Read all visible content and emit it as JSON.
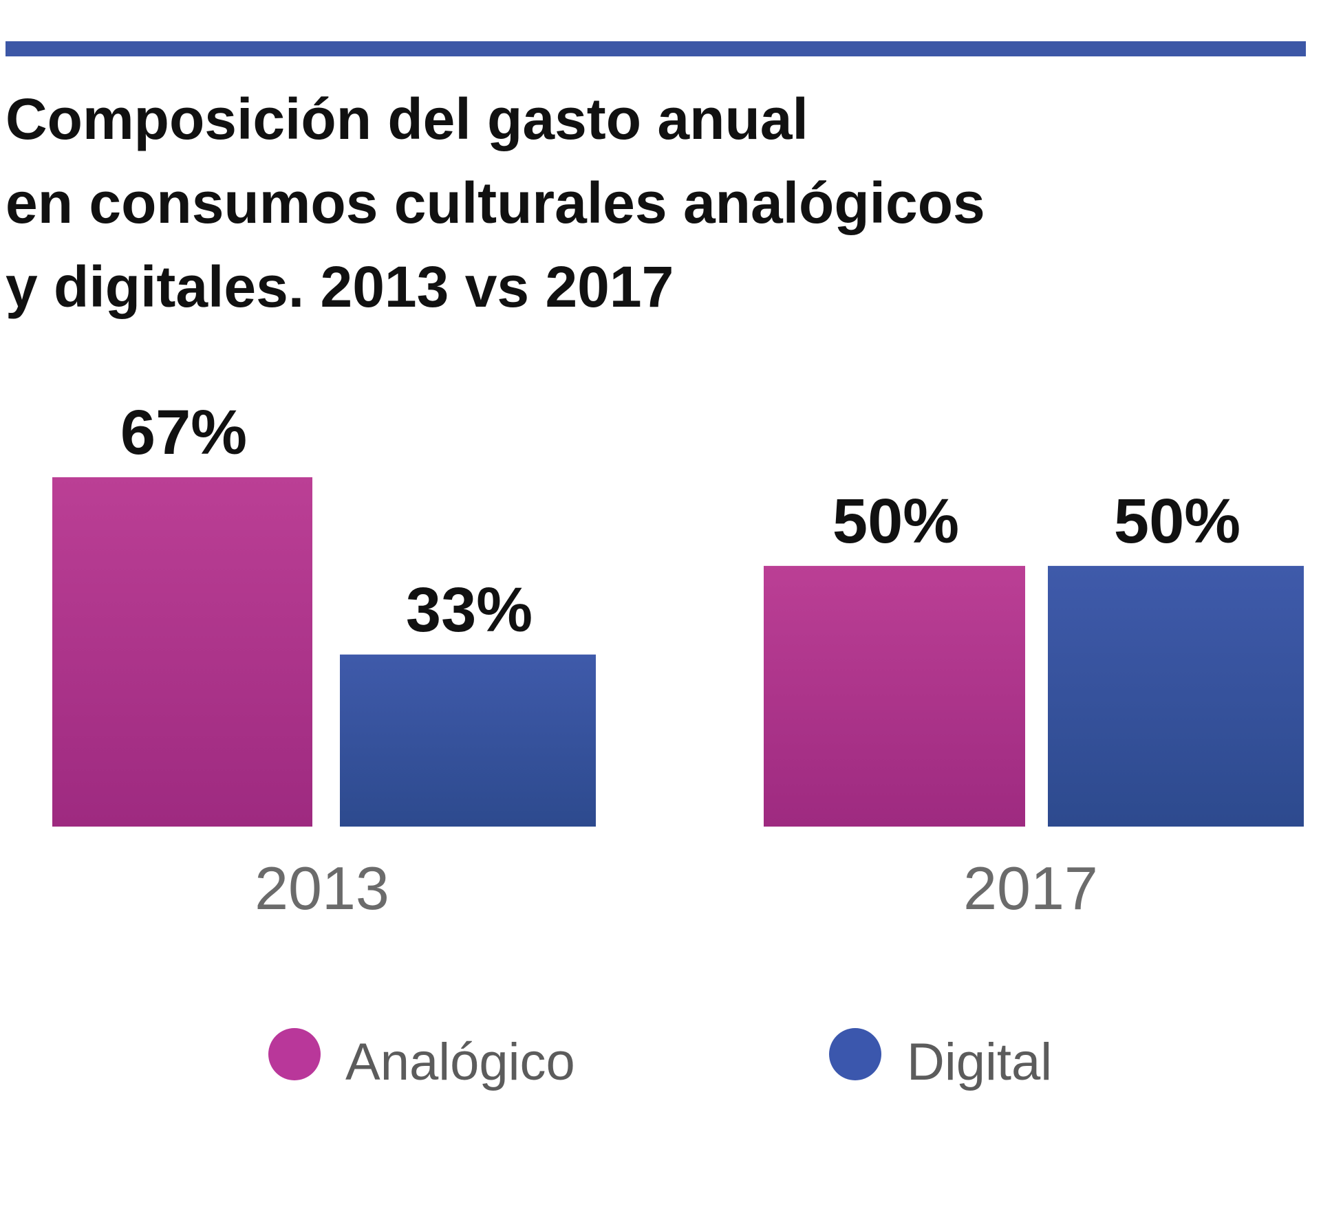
{
  "colors": {
    "rule": "#3c57a6",
    "analog_top": "#bb3f95",
    "analog_bottom": "#9e2a80",
    "digital_top": "#3f5aaa",
    "digital_bottom": "#2d4a8e",
    "analog_marker": "#b9379a",
    "digital_marker": "#3b57ad"
  },
  "title_lines": [
    "Composición del gasto anual",
    "en consumos culturales analógicos",
    "y digitales. 2013 vs 2017"
  ],
  "chart_data": {
    "type": "bar",
    "title": "Composición del gasto anual en consumos culturales analógicos y digitales. 2013 vs 2017",
    "categories": [
      "2013",
      "2017"
    ],
    "series": [
      {
        "name": "Analógico",
        "values": [
          67,
          50
        ],
        "labels": [
          "67%",
          "50%"
        ]
      },
      {
        "name": "Digital",
        "values": [
          33,
          50
        ],
        "labels": [
          "33%",
          "50%"
        ]
      }
    ],
    "ylim": [
      0,
      67
    ],
    "xlabel": "",
    "ylabel": "",
    "grid": false,
    "legend": "bottom"
  }
}
